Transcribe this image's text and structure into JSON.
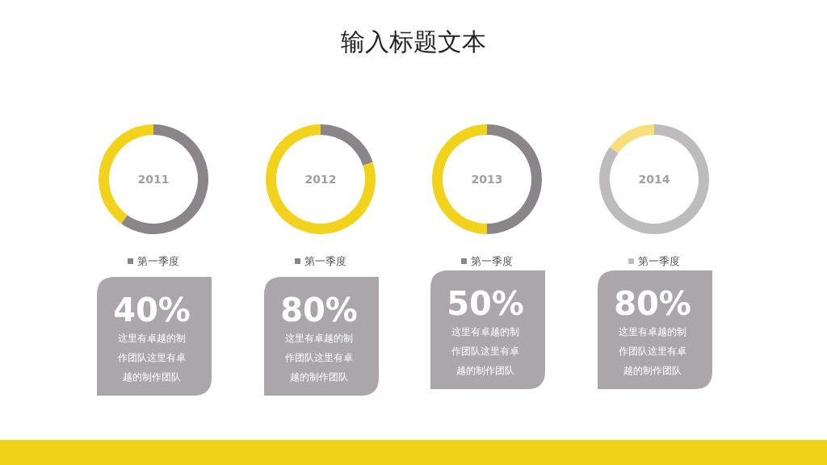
{
  "chart_data": [
    {
      "type": "donut",
      "title": "输入标题文本",
      "categories": [
        "第一季度",
        null
      ],
      "values": [
        60,
        40
      ],
      "colors": [
        "#8a8589",
        "#f2d21a"
      ],
      "legend": "bottom",
      "annotations": [
        "2011",
        "40%",
        "这里有卓越的制作团队这里有卓越的制作团队"
      ]
    },
    {
      "type": "donut",
      "categories": [
        "第一季度",
        null
      ],
      "values": [
        20,
        80
      ],
      "colors": [
        "#8a8589",
        "#f2d21a"
      ],
      "legend": "bottom",
      "annotations": [
        "2012",
        "80%",
        "这里有卓越的制作团队这里有卓越的制作团队"
      ]
    },
    {
      "type": "donut",
      "categories": [
        "第一季度",
        null
      ],
      "values": [
        50,
        50
      ],
      "colors": [
        "#8a8589",
        "#f2d21a"
      ],
      "legend": "bottom",
      "annotations": [
        "2013",
        "50%",
        "这里有卓越的制作团队这里有卓越的制作团队"
      ]
    },
    {
      "type": "donut",
      "categories": [
        "第一季度",
        null
      ],
      "values": [
        85,
        15
      ],
      "colors": [
        "#bdbbbc",
        "#f7e07a"
      ],
      "legend": "bottom",
      "annotations": [
        "2014",
        "80%",
        "这里有卓越的制作团队这里有卓越的制作团队"
      ]
    }
  ]
}
